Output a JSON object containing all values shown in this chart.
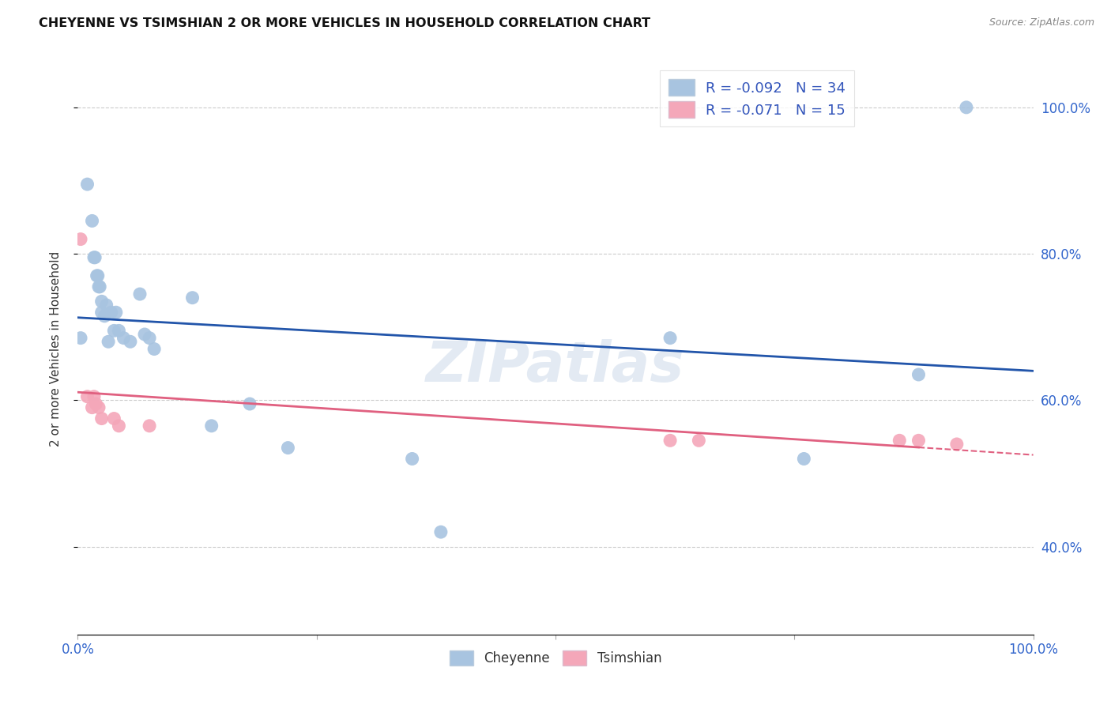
{
  "title": "CHEYENNE VS TSIMSHIAN 2 OR MORE VEHICLES IN HOUSEHOLD CORRELATION CHART",
  "source": "Source: ZipAtlas.com",
  "ylabel": "2 or more Vehicles in Household",
  "cheyenne_R": "-0.092",
  "cheyenne_N": "34",
  "tsimshian_R": "-0.071",
  "tsimshian_N": "15",
  "cheyenne_color": "#a8c4e0",
  "tsimshian_color": "#f4a7b9",
  "cheyenne_line_color": "#2255aa",
  "tsimshian_line_color": "#e06080",
  "watermark": "ZIPatlas",
  "cheyenne_x": [
    0.003,
    0.01,
    0.015,
    0.017,
    0.018,
    0.02,
    0.021,
    0.022,
    0.023,
    0.025,
    0.025,
    0.028,
    0.03,
    0.032,
    0.035,
    0.038,
    0.04,
    0.043,
    0.048,
    0.055,
    0.065,
    0.07,
    0.075,
    0.08,
    0.12,
    0.14,
    0.18,
    0.22,
    0.35,
    0.38,
    0.62,
    0.76,
    0.88,
    0.93
  ],
  "cheyenne_y": [
    0.685,
    0.895,
    0.845,
    0.795,
    0.795,
    0.77,
    0.77,
    0.755,
    0.755,
    0.72,
    0.735,
    0.715,
    0.73,
    0.68,
    0.72,
    0.695,
    0.72,
    0.695,
    0.685,
    0.68,
    0.745,
    0.69,
    0.685,
    0.67,
    0.74,
    0.565,
    0.595,
    0.535,
    0.52,
    0.42,
    0.685,
    0.52,
    0.635,
    1.0
  ],
  "tsimshian_x": [
    0.003,
    0.01,
    0.015,
    0.017,
    0.019,
    0.022,
    0.025,
    0.038,
    0.043,
    0.075,
    0.62,
    0.65,
    0.86,
    0.88,
    0.92
  ],
  "tsimshian_y": [
    0.82,
    0.605,
    0.59,
    0.605,
    0.595,
    0.59,
    0.575,
    0.575,
    0.565,
    0.565,
    0.545,
    0.545,
    0.545,
    0.545,
    0.54
  ],
  "grid_color": "#cccccc",
  "background_color": "#ffffff",
  "xlim": [
    0.0,
    1.0
  ],
  "ylim_min": 0.28,
  "ylim_max": 1.06,
  "yticks": [
    0.4,
    0.6,
    0.8,
    1.0
  ],
  "ytick_labels_right": [
    "40.0%",
    "60.0%",
    "80.0%",
    "100.0%"
  ],
  "xticks": [
    0.0,
    0.25,
    0.5,
    0.75,
    1.0
  ],
  "xtick_labels": [
    "0.0%",
    "",
    "",
    "",
    "100.0%"
  ]
}
